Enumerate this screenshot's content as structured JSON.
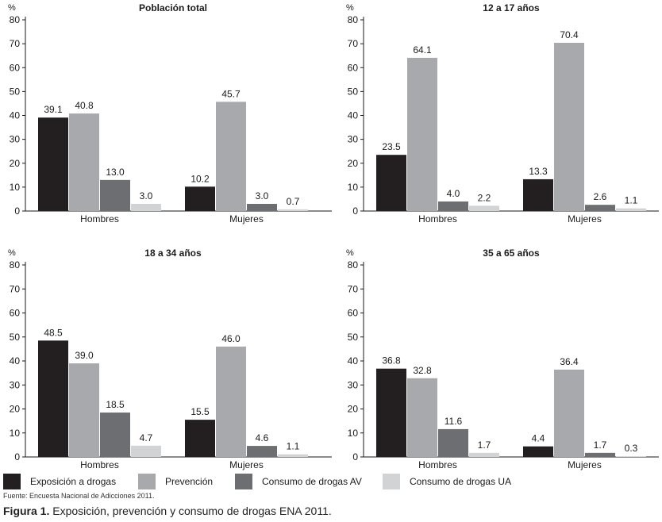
{
  "chart_data": [
    {
      "type": "bar",
      "title": "Población total",
      "ylabel": "%",
      "ylim": [
        0,
        80
      ],
      "yticks": [
        0,
        10,
        20,
        30,
        40,
        50,
        60,
        70,
        80
      ],
      "categories": [
        "Hombres",
        "Mujeres"
      ],
      "series": [
        {
          "name": "Exposición a drogas",
          "values": [
            39.1,
            10.2
          ]
        },
        {
          "name": "Prevención",
          "values": [
            40.8,
            45.7
          ]
        },
        {
          "name": "Consumo de drogas AV",
          "values": [
            13.0,
            3.0
          ]
        },
        {
          "name": "Consumo de drogas UA",
          "values": [
            3.0,
            0.7
          ]
        }
      ]
    },
    {
      "type": "bar",
      "title": "12 a 17 años",
      "ylabel": "%",
      "ylim": [
        0,
        80
      ],
      "yticks": [
        0,
        10,
        20,
        30,
        40,
        50,
        60,
        70,
        80
      ],
      "categories": [
        "Hombres",
        "Mujeres"
      ],
      "series": [
        {
          "name": "Exposición a drogas",
          "values": [
            23.5,
            13.3
          ]
        },
        {
          "name": "Prevención",
          "values": [
            64.1,
            70.4
          ]
        },
        {
          "name": "Consumo de drogas AV",
          "values": [
            4.0,
            2.6
          ]
        },
        {
          "name": "Consumo de drogas UA",
          "values": [
            2.2,
            1.1
          ]
        }
      ]
    },
    {
      "type": "bar",
      "title": "18 a 34 años",
      "ylabel": "%",
      "ylim": [
        0,
        80
      ],
      "yticks": [
        0,
        10,
        20,
        30,
        40,
        50,
        60,
        70,
        80
      ],
      "categories": [
        "Hombres",
        "Mujeres"
      ],
      "series": [
        {
          "name": "Exposición a drogas",
          "values": [
            48.5,
            15.5
          ]
        },
        {
          "name": "Prevención",
          "values": [
            39.0,
            46.0
          ]
        },
        {
          "name": "Consumo de drogas AV",
          "values": [
            18.5,
            4.6
          ]
        },
        {
          "name": "Consumo de drogas UA",
          "values": [
            4.7,
            1.1
          ]
        }
      ]
    },
    {
      "type": "bar",
      "title": "35 a 65 años",
      "ylabel": "%",
      "ylim": [
        0,
        80
      ],
      "yticks": [
        0,
        10,
        20,
        30,
        40,
        50,
        60,
        70,
        80
      ],
      "categories": [
        "Hombres",
        "Mujeres"
      ],
      "series": [
        {
          "name": "Exposición a drogas",
          "values": [
            36.8,
            4.4
          ]
        },
        {
          "name": "Prevención",
          "values": [
            32.8,
            36.4
          ]
        },
        {
          "name": "Consumo de drogas AV",
          "values": [
            11.6,
            1.7
          ]
        },
        {
          "name": "Consumo de drogas UA",
          "values": [
            1.7,
            0.3
          ]
        }
      ]
    }
  ],
  "legend": [
    {
      "label": "Exposición a drogas",
      "color": "#231f20"
    },
    {
      "label": "Prevención",
      "color": "#a7a9ac"
    },
    {
      "label": "Consumo de drogas AV",
      "color": "#6d6e71"
    },
    {
      "label": "Consumo de drogas UA",
      "color": "#d1d3d4"
    }
  ],
  "source": "Fuente: Encuesta Nacional de Adicciones 2011.",
  "caption": {
    "label": "Figura 1.",
    "text": " Exposición, prevención y consumo de drogas ENA 2011."
  }
}
